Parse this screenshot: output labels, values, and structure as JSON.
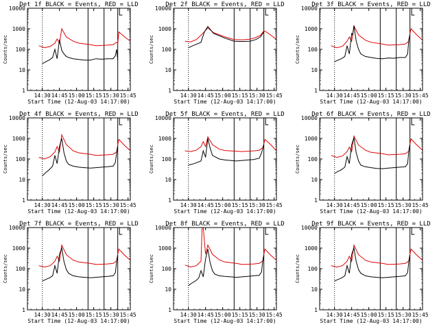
{
  "figure": {
    "start_time_label": "Start Time (12-Aug-03 14:17:00)",
    "ylabel": "Counts/sec",
    "legend_text": "BLACK = Events, RED = LLD"
  },
  "colors": {
    "events": "#000000",
    "lld": "#e00000",
    "background": "#ffffff"
  },
  "chart_data": {
    "type": "line",
    "xlim_min": [
      0,
      90
    ],
    "x_ticks_min": [
      13,
      28,
      43,
      58,
      73,
      88
    ],
    "x_tick_labels": [
      "14:30",
      "14:45",
      "15:00",
      "15:15",
      "15:30",
      "15:45"
    ],
    "ylim": [
      1,
      10000
    ],
    "yscale": "log",
    "y_tick_values": [
      1,
      10,
      100,
      1000,
      10000
    ],
    "y_tick_labels": [
      "1",
      "10",
      "100",
      "1000",
      "10000"
    ],
    "dotted_marker_min": 13,
    "solid_markers_min": [
      53,
      67,
      79
    ],
    "panels": [
      {
        "det": "1f",
        "title": "Det 1f BLACK = Events, RED = LLD",
        "events_x": [
          13,
          16,
          19,
          22,
          24,
          26,
          28,
          30,
          32,
          34,
          36,
          40,
          45,
          50,
          55,
          60,
          65,
          70,
          75,
          77,
          78,
          79,
          80
        ],
        "events_y": [
          20,
          25,
          30,
          40,
          100,
          35,
          300,
          90,
          60,
          45,
          40,
          35,
          32,
          30,
          30,
          35,
          33,
          35,
          35,
          50,
          100,
          30,
          null
        ],
        "lld_x": [
          10,
          15,
          20,
          24,
          26,
          28,
          30,
          34,
          40,
          45,
          55,
          60,
          70,
          75,
          78,
          79,
          80,
          85,
          90
        ],
        "lld_y": [
          150,
          120,
          140,
          200,
          320,
          200,
          1000,
          400,
          250,
          200,
          170,
          150,
          160,
          170,
          220,
          200,
          700,
          400,
          250
        ]
      },
      {
        "det": "2f",
        "title": "Det 2f BLACK = Events, RED = LLD",
        "events_x": [
          13,
          18,
          24,
          27,
          30,
          35,
          45,
          53,
          60,
          67,
          72,
          76,
          79,
          80
        ],
        "events_y": [
          120,
          160,
          220,
          700,
          1300,
          600,
          350,
          250,
          240,
          250,
          300,
          400,
          700,
          null
        ],
        "lld_x": [
          10,
          15,
          20,
          25,
          30,
          35,
          45,
          53,
          60,
          67,
          72,
          76,
          79,
          82,
          86,
          90
        ],
        "lld_y": [
          250,
          230,
          300,
          550,
          1100,
          650,
          400,
          300,
          290,
          310,
          380,
          480,
          800,
          650,
          450,
          300
        ]
      },
      {
        "det": "3f",
        "title": "Det 3f BLACK = Events, RED = LLD",
        "events_x": [
          13,
          16,
          19,
          22,
          24,
          26,
          28,
          29,
          30,
          32,
          34,
          36,
          40,
          45,
          50,
          55,
          60,
          65,
          70,
          75,
          77,
          78,
          79,
          80
        ],
        "events_y": [
          25,
          30,
          35,
          45,
          150,
          60,
          600,
          500,
          1400,
          250,
          100,
          60,
          45,
          40,
          36,
          35,
          38,
          37,
          40,
          40,
          60,
          300,
          500,
          null
        ],
        "lld_x": [
          10,
          15,
          20,
          24,
          26,
          28,
          30,
          34,
          40,
          45,
          55,
          60,
          70,
          75,
          78,
          79,
          80,
          85,
          90
        ],
        "lld_y": [
          150,
          120,
          140,
          250,
          400,
          250,
          1400,
          500,
          280,
          220,
          180,
          160,
          170,
          180,
          250,
          600,
          1000,
          500,
          280
        ]
      },
      {
        "det": "4f",
        "title": "Det 4f BLACK = Events, RED = LLD",
        "events_x": [
          13,
          16,
          19,
          22,
          24,
          26,
          28,
          30,
          32,
          34,
          36,
          40,
          45,
          50,
          55,
          60,
          65,
          70,
          75,
          77,
          78,
          79,
          80
        ],
        "events_y": [
          15,
          22,
          30,
          45,
          150,
          60,
          400,
          1000,
          200,
          80,
          55,
          45,
          40,
          38,
          36,
          38,
          40,
          42,
          45,
          70,
          200,
          400,
          null
        ],
        "lld_x": [
          10,
          15,
          20,
          24,
          26,
          28,
          30,
          34,
          40,
          45,
          55,
          60,
          70,
          75,
          78,
          79,
          80,
          85,
          90
        ],
        "lld_y": [
          120,
          100,
          130,
          220,
          400,
          220,
          1500,
          500,
          250,
          200,
          170,
          150,
          160,
          170,
          220,
          500,
          900,
          450,
          260
        ]
      },
      {
        "det": "5f",
        "title": "Det 5f BLACK = Events, RED = LLD",
        "events_x": [
          13,
          18,
          24,
          26,
          28,
          30,
          32,
          34,
          40,
          45,
          50,
          55,
          60,
          65,
          70,
          75,
          77,
          79,
          80
        ],
        "events_y": [
          50,
          60,
          80,
          250,
          120,
          1000,
          350,
          150,
          100,
          90,
          85,
          80,
          85,
          90,
          95,
          110,
          200,
          500,
          null
        ],
        "lld_x": [
          10,
          15,
          20,
          24,
          26,
          28,
          30,
          34,
          40,
          45,
          55,
          60,
          70,
          75,
          78,
          80,
          85,
          90
        ],
        "lld_y": [
          250,
          230,
          270,
          400,
          700,
          400,
          1200,
          500,
          300,
          260,
          240,
          230,
          250,
          270,
          350,
          900,
          500,
          250
        ]
      },
      {
        "det": "6f",
        "title": "Det 6f BLACK = Events, RED = LLD",
        "events_x": [
          13,
          16,
          19,
          22,
          24,
          26,
          28,
          30,
          32,
          34,
          36,
          40,
          45,
          50,
          55,
          60,
          65,
          70,
          75,
          77,
          78,
          79,
          80
        ],
        "events_y": [
          20,
          25,
          30,
          40,
          130,
          60,
          500,
          1100,
          200,
          80,
          50,
          42,
          38,
          35,
          34,
          36,
          38,
          40,
          42,
          60,
          250,
          500,
          null
        ],
        "lld_x": [
          10,
          15,
          20,
          24,
          26,
          28,
          30,
          34,
          40,
          45,
          55,
          60,
          70,
          75,
          78,
          79,
          80,
          85,
          90
        ],
        "lld_y": [
          150,
          120,
          140,
          230,
          380,
          230,
          1300,
          480,
          270,
          210,
          180,
          160,
          170,
          180,
          240,
          550,
          950,
          480,
          270
        ]
      },
      {
        "det": "7f",
        "title": "Det 7f BLACK = Events, RED = LLD",
        "events_x": [
          13,
          16,
          19,
          22,
          24,
          26,
          28,
          30,
          32,
          34,
          36,
          40,
          45,
          50,
          55,
          60,
          65,
          70,
          75,
          77,
          78,
          79,
          80
        ],
        "events_y": [
          25,
          30,
          35,
          45,
          140,
          60,
          500,
          1000,
          220,
          90,
          60,
          45,
          40,
          38,
          36,
          38,
          40,
          42,
          45,
          65,
          220,
          450,
          null
        ],
        "lld_x": [
          10,
          15,
          20,
          24,
          26,
          28,
          30,
          34,
          40,
          45,
          55,
          60,
          70,
          75,
          78,
          79,
          80,
          85,
          90
        ],
        "lld_y": [
          140,
          120,
          140,
          230,
          400,
          230,
          1400,
          480,
          260,
          210,
          180,
          160,
          170,
          180,
          240,
          520,
          900,
          450,
          260
        ]
      },
      {
        "det": "8f",
        "title": "Det 8f BLACK = Events, RED = LLD",
        "events_x": [
          13,
          16,
          19,
          22,
          24,
          26,
          28,
          30,
          32,
          34,
          36,
          40,
          45,
          50,
          55,
          60,
          65,
          70,
          75,
          77,
          78,
          79,
          80
        ],
        "events_y": [
          15,
          20,
          25,
          35,
          80,
          40,
          300,
          900,
          200,
          80,
          55,
          45,
          42,
          40,
          38,
          40,
          42,
          45,
          48,
          70,
          230,
          450,
          null
        ],
        "lld_x": [
          10,
          15,
          20,
          24,
          25,
          26,
          28,
          30,
          34,
          40,
          45,
          55,
          60,
          70,
          75,
          78,
          79,
          80,
          85,
          90
        ],
        "lld_y": [
          150,
          120,
          140,
          230,
          10000,
          10000,
          500,
          1400,
          500,
          270,
          210,
          180,
          160,
          170,
          180,
          240,
          520,
          900,
          450,
          260
        ]
      },
      {
        "det": "9f",
        "title": "Det 9f BLACK = Events, RED = LLD",
        "events_x": [
          13,
          16,
          19,
          22,
          24,
          26,
          28,
          30,
          32,
          34,
          36,
          40,
          45,
          50,
          55,
          60,
          65,
          70,
          75,
          77,
          78,
          79,
          80
        ],
        "events_y": [
          25,
          30,
          35,
          45,
          140,
          60,
          500,
          1000,
          220,
          90,
          60,
          45,
          40,
          38,
          36,
          38,
          40,
          42,
          45,
          65,
          220,
          450,
          null
        ],
        "lld_x": [
          10,
          15,
          20,
          24,
          26,
          28,
          30,
          34,
          40,
          45,
          55,
          60,
          70,
          75,
          78,
          79,
          80,
          85,
          90
        ],
        "lld_y": [
          140,
          120,
          140,
          230,
          400,
          230,
          1400,
          480,
          260,
          210,
          180,
          160,
          170,
          180,
          240,
          520,
          900,
          450,
          260
        ]
      }
    ]
  }
}
